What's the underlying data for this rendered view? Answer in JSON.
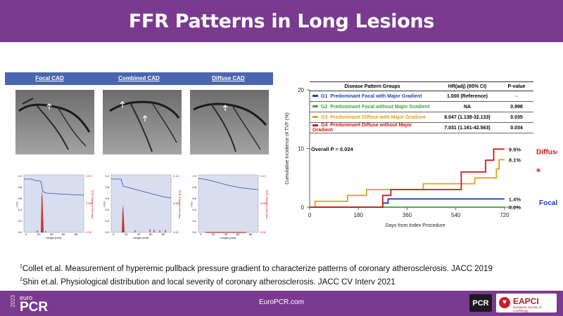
{
  "title": "FFR Patterns in Long Lesions",
  "angiography": {
    "headers": [
      "Focal CAD",
      "Combined CAD",
      "Diffuse CAD"
    ]
  },
  "pullback": {
    "y_left_label": "FFR",
    "y_right_label": "FFR Gradient Per Imm",
    "x_label": "Length (mm)",
    "y_left_ticks": [
      "0.0",
      "0.2",
      "0.4",
      "0.6",
      "0.8",
      "1.0"
    ],
    "y_right_ticks": [
      "0.00",
      "0.05",
      "0.10"
    ],
    "x_ticks": [
      "0",
      "20",
      "40",
      "60",
      "80"
    ]
  },
  "km_table": {
    "headers": [
      "Disease Pattern Groups",
      "HR(adj) (95% CI)",
      "P-value"
    ],
    "rows": [
      {
        "group": "G1",
        "label": "Predominant Focal with Major Gradient",
        "hr": "1.000 (Reference)",
        "p": "-",
        "color": "#1f3fbf"
      },
      {
        "group": "G2",
        "label": "Predominant Focal without Major Gradient",
        "hr": "NA",
        "p": "0.998",
        "color": "#3aa53a"
      },
      {
        "group": "G3",
        "label": "Predominant Diffuse with Major Gradient",
        "hr": "6.047 (1.138-32.133)",
        "p": "0.035",
        "color": "#e0a21a"
      },
      {
        "group": "G4",
        "label": "Predominant Diffuse without Major Gradient",
        "hr": "7.031 (1.161-42.563)",
        "p": "0.034",
        "color": "#cc1a1a"
      }
    ]
  },
  "chart_data": {
    "type": "line",
    "xlabel": "Days from Index Procedure",
    "ylabel": "Cumulative Incidence of TVF (%)",
    "xlim": [
      0,
      780
    ],
    "ylim": [
      0,
      20
    ],
    "x_ticks": [
      0,
      180,
      360,
      540,
      720
    ],
    "y_ticks": [
      0,
      10,
      20
    ],
    "annotation": "Overall P = 0.024",
    "end_labels": [
      "9.9%",
      "8.1%",
      "1.4%",
      "0.0%"
    ],
    "group_labels": [
      "Diffuse",
      "Focal"
    ],
    "series": [
      {
        "name": "G1",
        "color": "#1f3fbf",
        "points": [
          [
            0,
            0
          ],
          [
            270,
            0
          ],
          [
            270,
            0.7
          ],
          [
            290,
            0.7
          ],
          [
            290,
            1.4
          ],
          [
            720,
            1.4
          ]
        ]
      },
      {
        "name": "G2",
        "color": "#3aa53a",
        "points": [
          [
            0,
            0
          ],
          [
            720,
            0
          ]
        ]
      },
      {
        "name": "G3",
        "color": "#e0a21a",
        "points": [
          [
            0,
            0
          ],
          [
            20,
            0
          ],
          [
            20,
            1.0
          ],
          [
            140,
            1.0
          ],
          [
            140,
            2.0
          ],
          [
            210,
            2.0
          ],
          [
            210,
            3.0
          ],
          [
            420,
            3.0
          ],
          [
            420,
            4.0
          ],
          [
            610,
            4.0
          ],
          [
            610,
            5.0
          ],
          [
            690,
            5.0
          ],
          [
            690,
            6.5
          ],
          [
            700,
            6.5
          ],
          [
            700,
            8.1
          ],
          [
            720,
            8.1
          ]
        ]
      },
      {
        "name": "G4",
        "color": "#cc1a1a",
        "points": [
          [
            0,
            0
          ],
          [
            270,
            0
          ],
          [
            270,
            2.0
          ],
          [
            300,
            2.0
          ],
          [
            300,
            3.0
          ],
          [
            560,
            3.0
          ],
          [
            560,
            6.0
          ],
          [
            650,
            6.0
          ],
          [
            650,
            8.0
          ],
          [
            680,
            8.0
          ],
          [
            680,
            9.9
          ],
          [
            720,
            9.9
          ]
        ]
      }
    ]
  },
  "references": [
    {
      "num": "1",
      "text": "Collet et.al. Measurement of hyperemic pullback pressure gradient to characterize patterns of coronary atherosclerosis. JACC 2019"
    },
    {
      "num": "2",
      "text": "Shin et.al. Physiological distribution and local severity of coronary atherosclerosis. JACC CV Interv 2021"
    }
  ],
  "footer": {
    "year": "2023",
    "brand_small": "euro",
    "brand": "PCR",
    "site": "EuroPCR.com",
    "badge": "PCR",
    "partner": "EAPCI",
    "partner_sub": "European Society of Cardiology"
  },
  "colors": {
    "brand": "#7a3a8f",
    "header_blue": "#4a66b0",
    "diffuse_red": "#cc1a1a",
    "focal_blue": "#1f3fbf"
  }
}
